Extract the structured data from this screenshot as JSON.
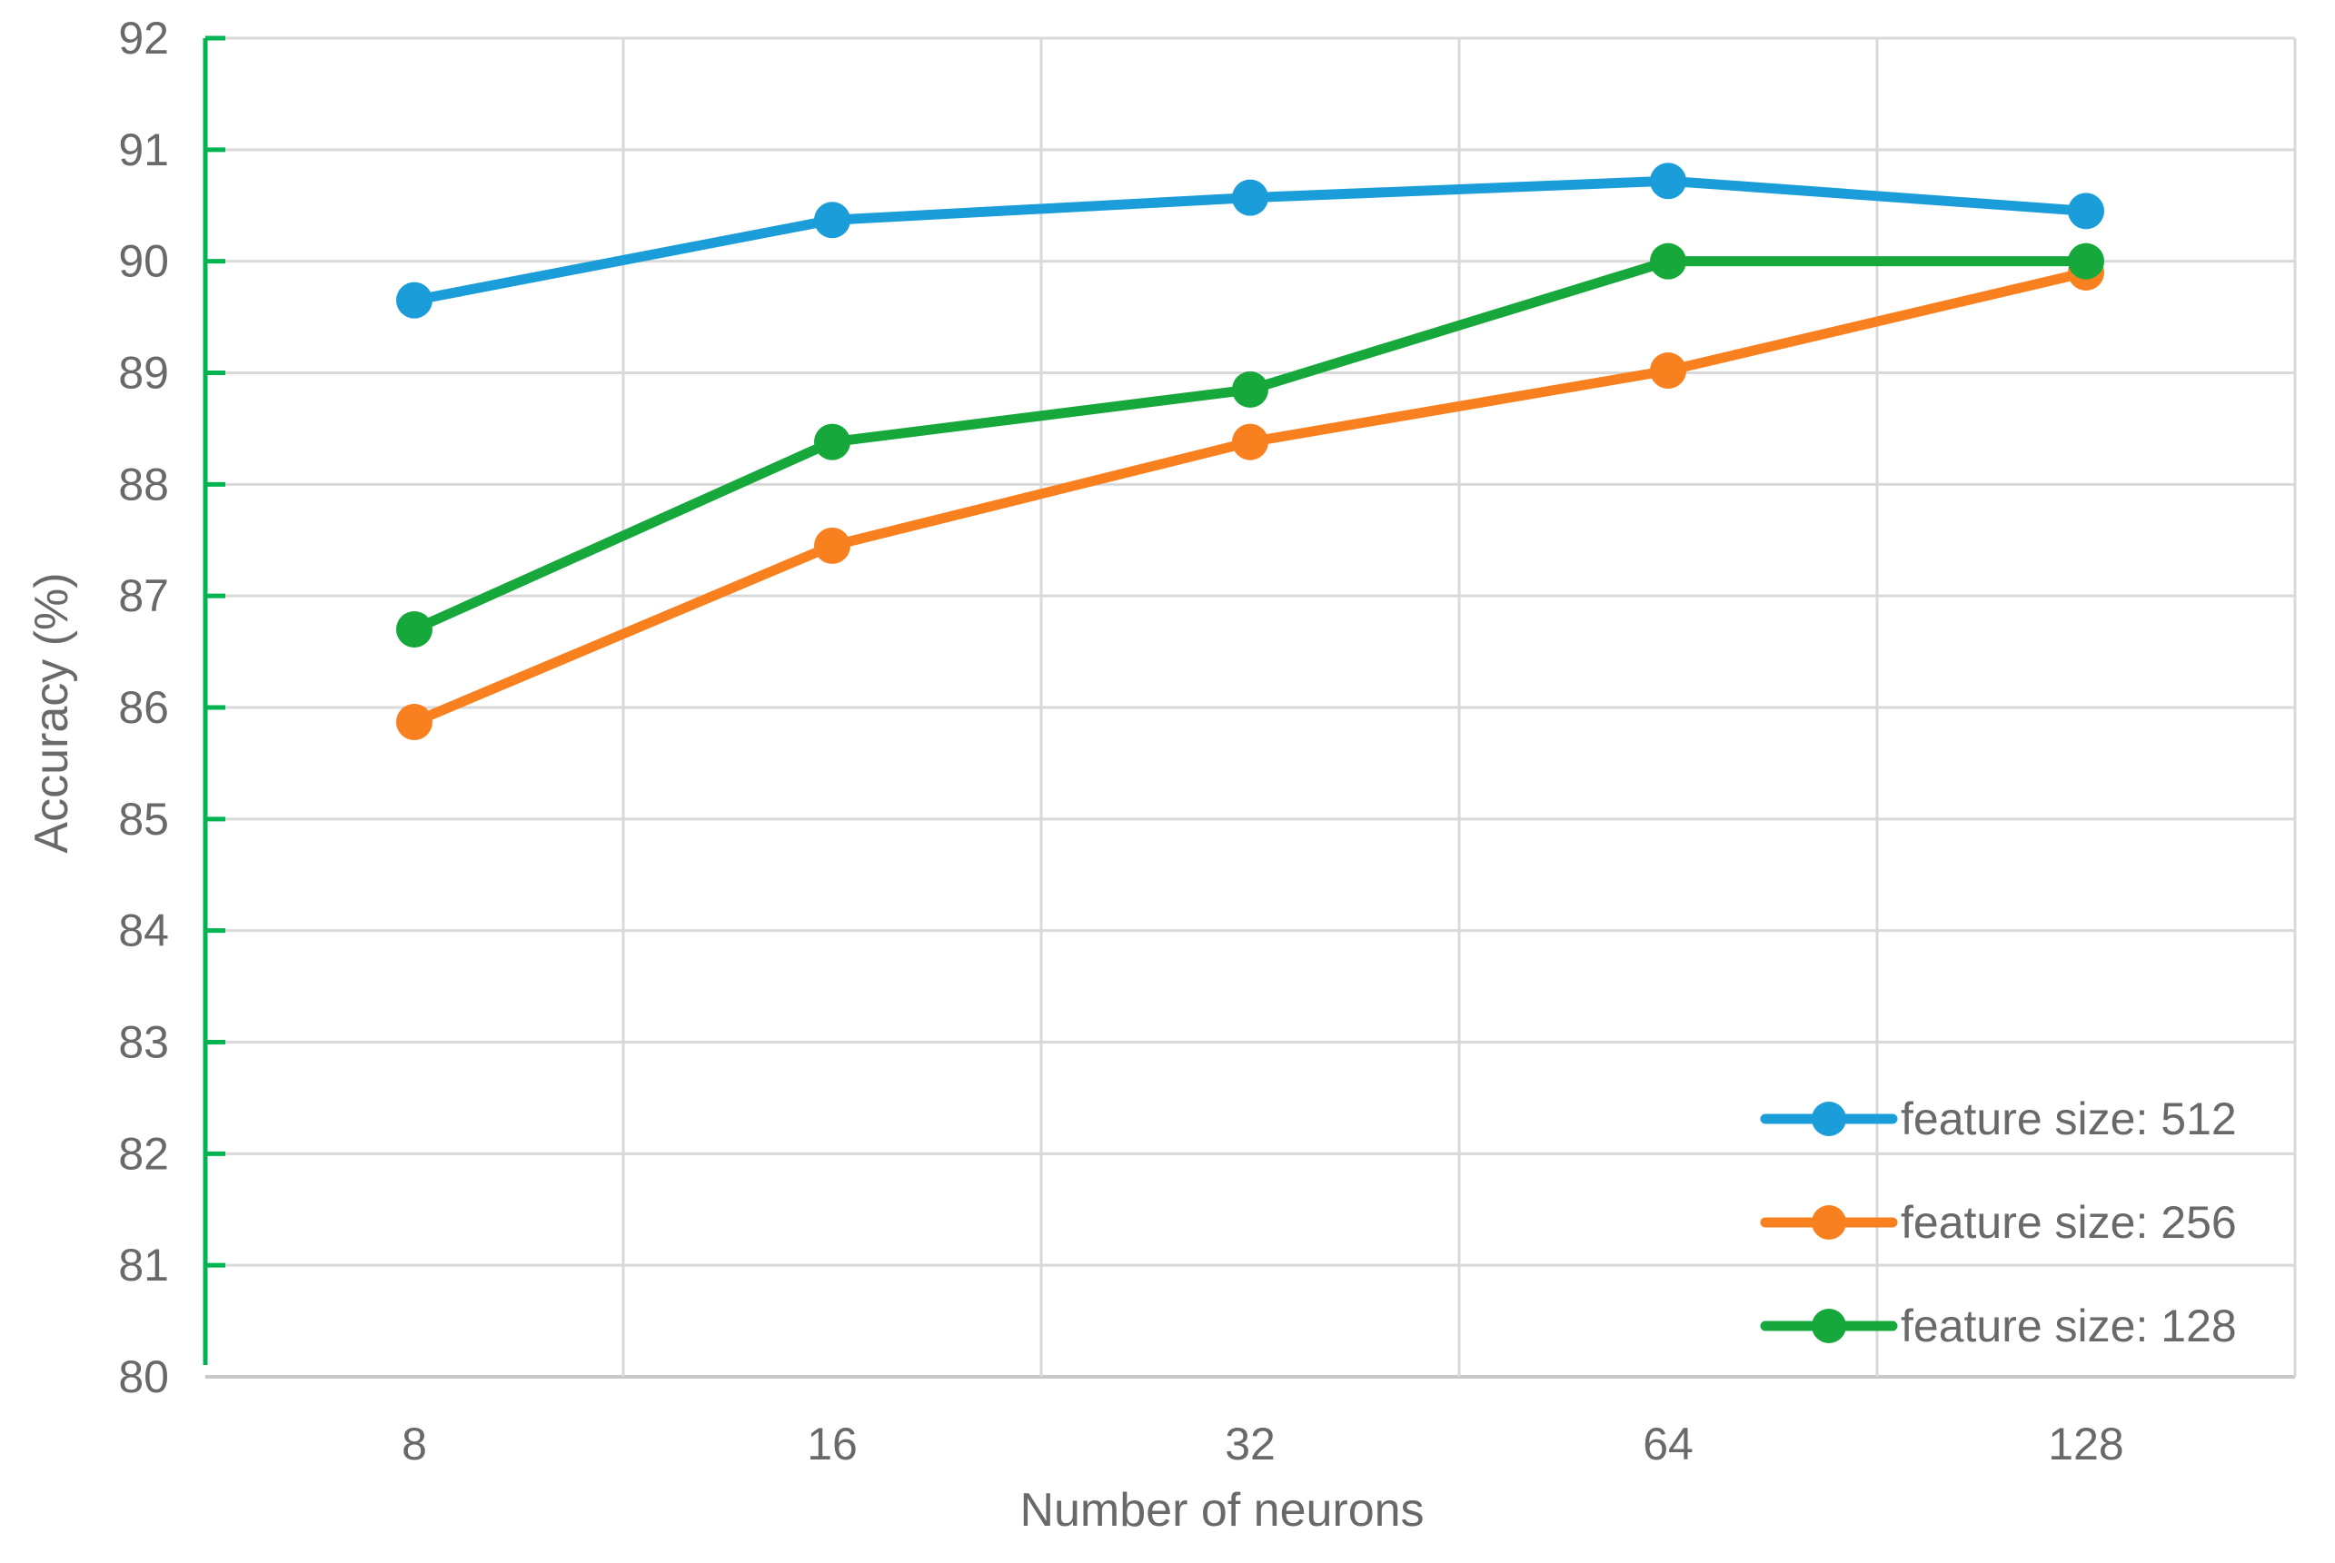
{
  "figure": {
    "background": "#ffffff"
  },
  "chart_data": {
    "type": "line",
    "title": "",
    "xlabel": "Number of neurons",
    "ylabel": "Accuracy (%)",
    "categories": [
      "8",
      "16",
      "32",
      "64",
      "128"
    ],
    "yticks": [
      "80",
      "81",
      "82",
      "83",
      "84",
      "85",
      "86",
      "87",
      "88",
      "89",
      "90",
      "91",
      "92"
    ],
    "ylim": [
      80,
      92
    ],
    "grid": true,
    "legend_position": "lower-right",
    "series": [
      {
        "name": "feature size: 512",
        "color": "#1B9DD9",
        "values": [
          89.65,
          90.37,
          90.57,
          90.72,
          90.45
        ]
      },
      {
        "name": "feature size: 256",
        "color": "#F8801E",
        "values": [
          85.87,
          87.45,
          88.38,
          89.02,
          89.9
        ]
      },
      {
        "name": "feature size: 128",
        "color": "#17A83C",
        "values": [
          86.7,
          88.38,
          88.85,
          90.0,
          90.0
        ]
      }
    ],
    "colors": {
      "axis_line": "#00B551",
      "gridline": "#D9D9D9",
      "baseline": "#C8C8C8",
      "text": "#696969"
    }
  }
}
